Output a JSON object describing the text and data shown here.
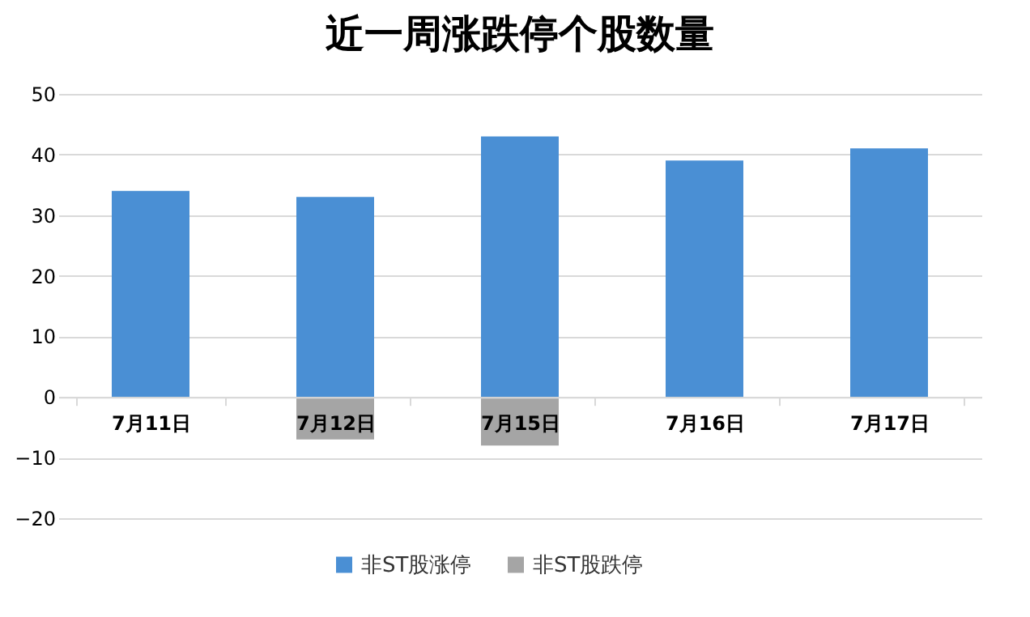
{
  "chart_data": {
    "type": "bar",
    "title": "近一周涨跌停个股数量",
    "categories": [
      "7月11日",
      "7月12日",
      "7月15日",
      "7月16日",
      "7月17日"
    ],
    "series": [
      {
        "name": "非ST股涨停",
        "color": "#4a8fd4",
        "values": [
          34,
          33,
          43,
          39,
          41
        ]
      },
      {
        "name": "非ST股跌停",
        "color": "#a5a5a5",
        "values": [
          null,
          -7,
          -8,
          null,
          null
        ]
      }
    ],
    "ylim": [
      -20,
      50
    ],
    "yticks": [
      -20,
      -10,
      0,
      10,
      20,
      30,
      40,
      50
    ],
    "grid": "y",
    "legend": "bottom"
  }
}
